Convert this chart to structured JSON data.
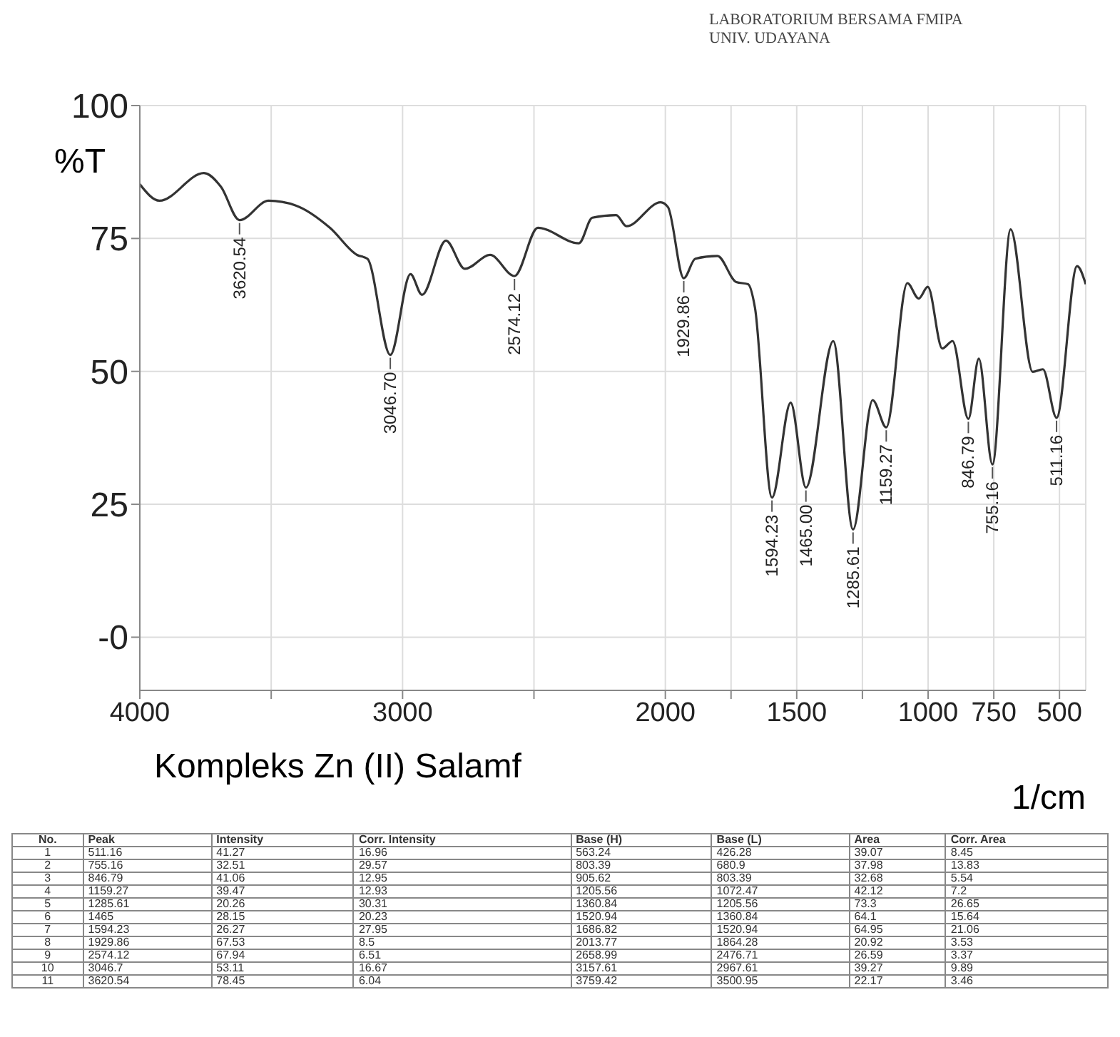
{
  "chart_data": {
    "type": "line",
    "title": "Kompleks Zn (II) Salamf",
    "subtitle": "LABORATORIUM BERSAMA FMIPA\nUNIV. UDAYANA",
    "xlabel": "1/cm",
    "ylabel": "%T",
    "annotations": [
      {
        "text": "3620.54",
        "x": 3620.54,
        "y": 78.45
      },
      {
        "text": "3046.70",
        "x": 3046.7,
        "y": 53.11
      },
      {
        "text": "2574.12",
        "x": 2574.12,
        "y": 67.94
      },
      {
        "text": "1929.86",
        "x": 1929.86,
        "y": 67.53
      },
      {
        "text": "1594.23",
        "x": 1594.23,
        "y": 26.27
      },
      {
        "text": "1465.00",
        "x": 1465,
        "y": 28.15
      },
      {
        "text": "1285.61",
        "x": 1285.61,
        "y": 20.26
      },
      {
        "text": "1159.27",
        "x": 1159.27,
        "y": 39.47
      },
      {
        "text": "846.79",
        "x": 846.79,
        "y": 41.06
      },
      {
        "text": "755.16",
        "x": 755.16,
        "y": 32.51
      },
      {
        "text": "511.16",
        "x": 511.16,
        "y": 41.27
      },
      "No.",
      "Peak",
      "Intensity",
      "Corr. Intensity",
      "Base (H)",
      "Base (L)",
      "Area",
      "Corr. Area",
      "1",
      "511.16",
      "41.27",
      "16.96",
      "563.24",
      "426.28",
      "39.07",
      "8.45",
      "2",
      "755.16",
      "32.51",
      "29.57",
      "803.39",
      "680.9",
      "37.98",
      "13.83",
      "3",
      "846.79",
      "41.06",
      "12.95",
      "905.62",
      "803.39",
      "32.68",
      "5.54",
      "4",
      "1159.27",
      "39.47",
      "12.93",
      "1205.56",
      "1072.47",
      "42.12",
      "7.2",
      "5",
      "1285.61",
      "20.26",
      "30.31",
      "1360.84",
      "1205.56",
      "73.3",
      "26.65",
      "6",
      "1465",
      "28.15",
      "20.23",
      "1520.94",
      "1360.84",
      "64.1",
      "15.64",
      "7",
      "1594.23",
      "26.27",
      "27.95",
      "1686.82",
      "1520.94",
      "64.95",
      "21.06",
      "8",
      "1929.86",
      "67.53",
      "8.5",
      "2013.77",
      "1864.28",
      "20.92",
      "3.53",
      "9",
      "2574.12",
      "67.94",
      "6.51",
      "2658.99",
      "2476.71",
      "26.59",
      "3.37",
      "10",
      "3046.7",
      "53.11",
      "16.67",
      "3157.61",
      "2967.61",
      "39.27",
      "9.89",
      "11",
      "3620.54",
      "78.45",
      "6.04",
      "3759.42",
      "3500.95",
      "22.17",
      "3.46"
    ],
    "x": [
      4000,
      3925,
      3756,
      3691,
      3620.54,
      3510,
      3406,
      3276,
      3173,
      3134,
      3046.7,
      2970,
      2926,
      2835,
      2763,
      2667,
      2574.12,
      2485,
      2329,
      2278,
      2187,
      2148,
      2018,
      1990,
      1929.86,
      1886,
      1802,
      1730,
      1685,
      1659,
      1594.23,
      1523,
      1465,
      1361,
      1285.61,
      1211,
      1159.27,
      1079,
      1036,
      1001,
      946,
      907,
      846.79,
      807,
      755.16,
      686,
      602,
      563,
      511.16,
      433,
      400
    ],
    "values": [
      85.2,
      82.1,
      87.3,
      84.7,
      78.45,
      82.1,
      81.2,
      77.0,
      71.9,
      71.2,
      53.11,
      68.3,
      64.4,
      74.6,
      69.3,
      71.9,
      67.94,
      77.0,
      74.1,
      78.9,
      79.4,
      77.3,
      81.8,
      80.9,
      67.53,
      71.2,
      71.7,
      66.8,
      66.4,
      62.0,
      26.27,
      44.1,
      28.15,
      55.7,
      20.26,
      44.6,
      39.47,
      66.6,
      63.7,
      65.9,
      54.3,
      55.7,
      41.06,
      52.4,
      32.51,
      76.7,
      49.9,
      50.4,
      41.27,
      69.8,
      66.4
    ],
    "color": "#333333",
    "marker": "none",
    "line_style": "solid",
    "grid": true,
    "xlim": [
      4000,
      400
    ],
    "xticks": [
      4000,
      {
        "value": 3500,
        "label": null
      },
      3000,
      {
        "value": 2500,
        "label": null
      },
      2000,
      {
        "value": 1750,
        "label": null
      },
      1500,
      {
        "value": 1250,
        "label": null
      },
      1000,
      750,
      500
    ],
    "ylim": [
      -10,
      100
    ],
    "yticks": [
      {
        "value": 0,
        "label": "-0"
      },
      25,
      50,
      75,
      100
    ]
  }
}
